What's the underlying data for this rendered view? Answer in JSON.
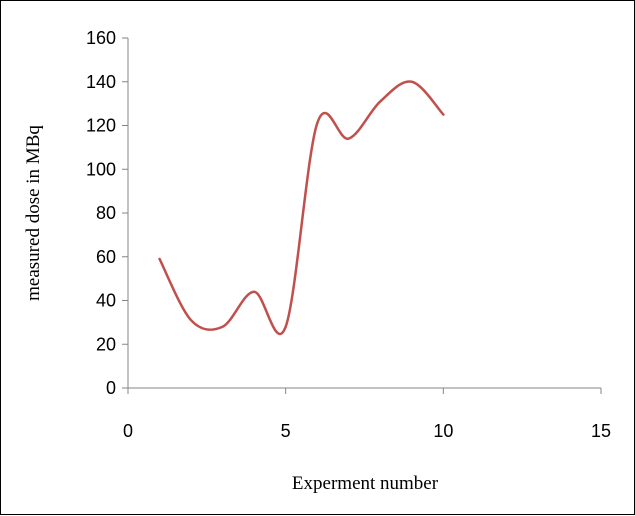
{
  "chart_data": {
    "type": "line",
    "xlabel": "Experment number",
    "ylabel": "measured dose in MBq",
    "xlim": [
      0,
      15
    ],
    "ylim": [
      0,
      160
    ],
    "x_ticks": [
      0,
      5,
      10,
      15
    ],
    "y_ticks": [
      0,
      20,
      40,
      60,
      80,
      100,
      120,
      140,
      160
    ],
    "grid": false,
    "legend": "none",
    "smooth": true,
    "series": [
      {
        "color": "#C0504D",
        "x": [
          1,
          2,
          3,
          4,
          5,
          6,
          7,
          8,
          9,
          10
        ],
        "y": [
          59,
          31,
          28,
          44,
          28,
          121,
          114,
          131,
          140,
          125
        ]
      }
    ]
  }
}
